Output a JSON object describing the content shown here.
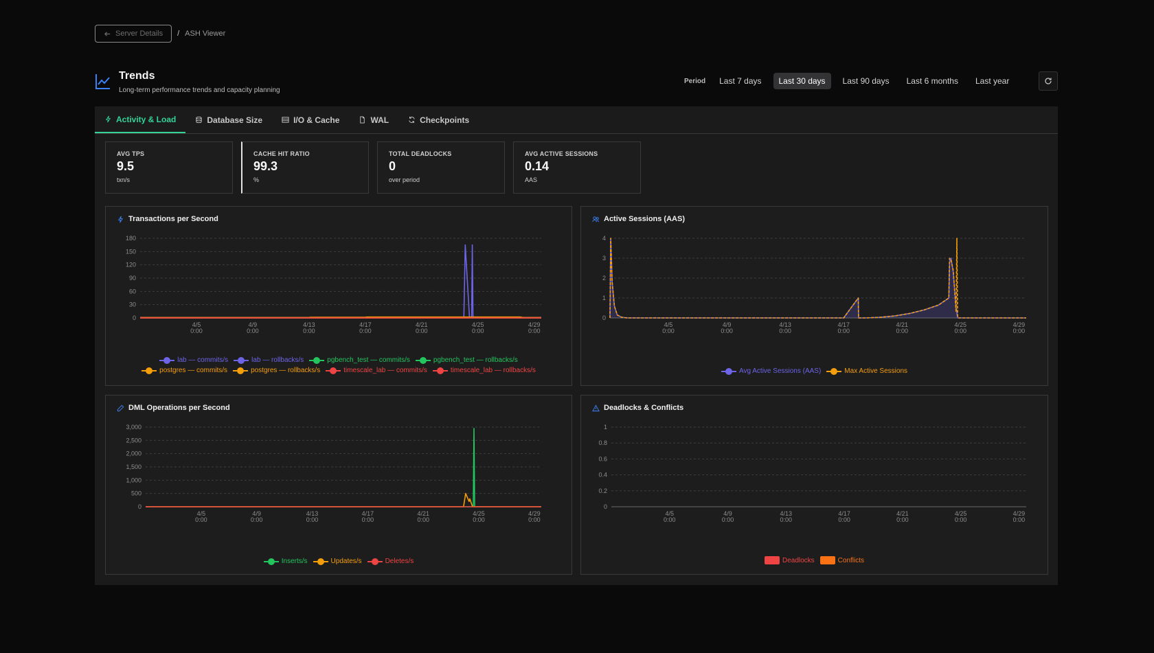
{
  "breadcrumb": {
    "back_label": "Server Details",
    "separator": "/",
    "current": "ASH Viewer"
  },
  "header": {
    "title": "Trends",
    "subtitle": "Long-term performance trends and capacity planning"
  },
  "period": {
    "label": "Period",
    "options": [
      "Last 7 days",
      "Last 30 days",
      "Last 90 days",
      "Last 6 months",
      "Last year"
    ],
    "selected": "Last 30 days"
  },
  "tabs": [
    {
      "label": "Activity & Load",
      "icon": "bolt-icon",
      "active": true
    },
    {
      "label": "Database Size",
      "icon": "database-icon",
      "active": false
    },
    {
      "label": "I/O & Cache",
      "icon": "disk-icon",
      "active": false
    },
    {
      "label": "WAL",
      "icon": "file-icon",
      "active": false
    },
    {
      "label": "Checkpoints",
      "icon": "refresh-cycle-icon",
      "active": false
    }
  ],
  "stats": [
    {
      "label": "AVG TPS",
      "value": "9.5",
      "unit": "txn/s"
    },
    {
      "label": "CACHE HIT RATIO",
      "value": "99.3",
      "unit": "%"
    },
    {
      "label": "TOTAL DEADLOCKS",
      "value": "0",
      "unit": "over period"
    },
    {
      "label": "AVG ACTIVE SESSIONS",
      "value": "0.14",
      "unit": "AAS"
    }
  ],
  "colors": {
    "accent": "#34d399",
    "purple": "#6d64e8",
    "green": "#22c55e",
    "orange": "#f59e0b",
    "red": "#ef4444",
    "blue_icon": "#3b82f6"
  },
  "chart_data": [
    {
      "id": "tps",
      "type": "line",
      "title": "Transactions per Second",
      "x_labels": [
        "4/5 0:00",
        "4/9 0:00",
        "4/13 0:00",
        "4/17 0:00",
        "4/21 0:00",
        "4/25 0:00",
        "4/29 0:00"
      ],
      "xlim": [
        0,
        28.5
      ],
      "y_ticks": [
        "180",
        "150",
        "120",
        "90",
        "60",
        "30",
        "0"
      ],
      "ylim": [
        0,
        180
      ],
      "grid": true,
      "legend_position": "bottom",
      "series": [
        {
          "name": "lab — commits/s",
          "color": "#6d64e8",
          "x": [
            0,
            23.0,
            23.1,
            23.4,
            23.55,
            23.6,
            23.65,
            23.7,
            28.5
          ],
          "y": [
            1,
            1,
            165,
            1,
            0,
            165,
            1,
            1,
            1
          ]
        },
        {
          "name": "lab — rollbacks/s",
          "color": "#6d64e8",
          "x": [
            0,
            28.5
          ],
          "y": [
            0,
            0
          ]
        },
        {
          "name": "pgbench_test — commits/s",
          "color": "#22c55e",
          "x": [
            0,
            28.5
          ],
          "y": [
            0,
            0
          ]
        },
        {
          "name": "pgbench_test — rollbacks/s",
          "color": "#22c55e",
          "x": [
            0,
            28.5
          ],
          "y": [
            0,
            0
          ]
        },
        {
          "name": "postgres — commits/s",
          "color": "#f59e0b",
          "x": [
            0,
            12,
            12.1,
            16,
            16.1,
            27,
            27.2,
            28.5
          ],
          "y": [
            1,
            1,
            1.5,
            1.5,
            2,
            2,
            1,
            1
          ]
        },
        {
          "name": "postgres — rollbacks/s",
          "color": "#f59e0b",
          "x": [
            0,
            28.5
          ],
          "y": [
            0,
            0
          ]
        },
        {
          "name": "timescale_lab — commits/s",
          "color": "#ef4444",
          "x": [
            0,
            28.5
          ],
          "y": [
            0,
            0
          ]
        },
        {
          "name": "timescale_lab — rollbacks/s",
          "color": "#ef4444",
          "x": [
            0,
            28.5
          ],
          "y": [
            0,
            0
          ]
        }
      ]
    },
    {
      "id": "aas",
      "type": "area",
      "title": "Active Sessions (AAS)",
      "x_labels": [
        "4/5 0:00",
        "4/9 0:00",
        "4/13 0:00",
        "4/17 0:00",
        "4/21 0:00",
        "4/25 0:00",
        "4/29 0:00"
      ],
      "xlim": [
        0,
        28.5
      ],
      "y_ticks": [
        "4",
        "3",
        "2",
        "1",
        "0"
      ],
      "ylim": [
        0,
        4
      ],
      "grid": true,
      "legend_position": "bottom",
      "series": [
        {
          "name": "Avg Active Sessions (AAS)",
          "color": "#6d64e8",
          "fill": true,
          "x": [
            0,
            0.05,
            0.15,
            0.3,
            0.5,
            0.8,
            1.2,
            16,
            16.5,
            17.0,
            17.02,
            17.5,
            18.5,
            19.5,
            20.5,
            21.5,
            22.5,
            23.2,
            23.25,
            23.35,
            23.5,
            23.7,
            23.8,
            28.5
          ],
          "y": [
            0,
            4,
            1.8,
            0.6,
            0.15,
            0.03,
            0,
            0,
            0.5,
            1,
            0,
            0,
            0.03,
            0.1,
            0.22,
            0.4,
            0.65,
            1.0,
            2.8,
            3.0,
            2.3,
            0.5,
            0,
            0
          ]
        },
        {
          "name": "Max Active Sessions",
          "color": "#f59e0b",
          "dashed": true,
          "x": [
            0,
            0.05,
            0.15,
            0.3,
            0.5,
            0.8,
            1.2,
            16,
            16.5,
            17.0,
            17.02,
            17.5,
            18.5,
            19.5,
            20.5,
            21.5,
            22.5,
            23.2,
            23.25,
            23.35,
            23.5,
            23.7,
            23.75,
            23.8,
            23.85,
            28.5
          ],
          "y": [
            0,
            4,
            1.8,
            0.6,
            0.15,
            0.03,
            0,
            0,
            0.5,
            1,
            0,
            0,
            0.03,
            0.1,
            0.22,
            0.4,
            0.65,
            1.0,
            3.0,
            2.9,
            2.4,
            0.3,
            4.0,
            0.1,
            0,
            0
          ]
        }
      ]
    },
    {
      "id": "dml",
      "type": "line",
      "title": "DML Operations per Second",
      "x_labels": [
        "4/5 0:00",
        "4/9 0:00",
        "4/13 0:00",
        "4/17 0:00",
        "4/21 0:00",
        "4/25 0:00",
        "4/29 0:00"
      ],
      "xlim": [
        0,
        28.5
      ],
      "y_ticks": [
        "3,000",
        "2,500",
        "2,000",
        "1,500",
        "1,000",
        "500",
        "0"
      ],
      "ylim": [
        0,
        3000
      ],
      "grid": true,
      "legend_position": "bottom",
      "series": [
        {
          "name": "Inserts/s",
          "color": "#22c55e",
          "x": [
            0,
            23.6,
            23.65,
            23.7,
            28.5
          ],
          "y": [
            0,
            0,
            2950,
            0,
            0
          ]
        },
        {
          "name": "Updates/s",
          "color": "#f59e0b",
          "x": [
            0,
            22.9,
            23.05,
            23.3,
            23.35,
            23.55,
            23.65,
            28.5
          ],
          "y": [
            0,
            0,
            500,
            200,
            300,
            0,
            0,
            0
          ]
        },
        {
          "name": "Deletes/s",
          "color": "#ef4444",
          "x": [
            0,
            28.5
          ],
          "y": [
            0,
            0
          ]
        }
      ]
    },
    {
      "id": "deadlocks",
      "type": "bar",
      "title": "Deadlocks & Conflicts",
      "x_labels": [
        "4/5 0:00",
        "4/9 0:00",
        "4/13 0:00",
        "4/17 0:00",
        "4/21 0:00",
        "4/25 0:00",
        "4/29 0:00"
      ],
      "xlim": [
        0,
        28.5
      ],
      "y_ticks": [
        "1",
        "0.8",
        "0.6",
        "0.4",
        "0.2",
        "0"
      ],
      "ylim": [
        0,
        1
      ],
      "grid": true,
      "legend_position": "bottom",
      "series": [
        {
          "name": "Deadlocks",
          "color": "#ef4444",
          "values": []
        },
        {
          "name": "Conflicts",
          "color": "#f97316",
          "values": []
        }
      ]
    }
  ]
}
